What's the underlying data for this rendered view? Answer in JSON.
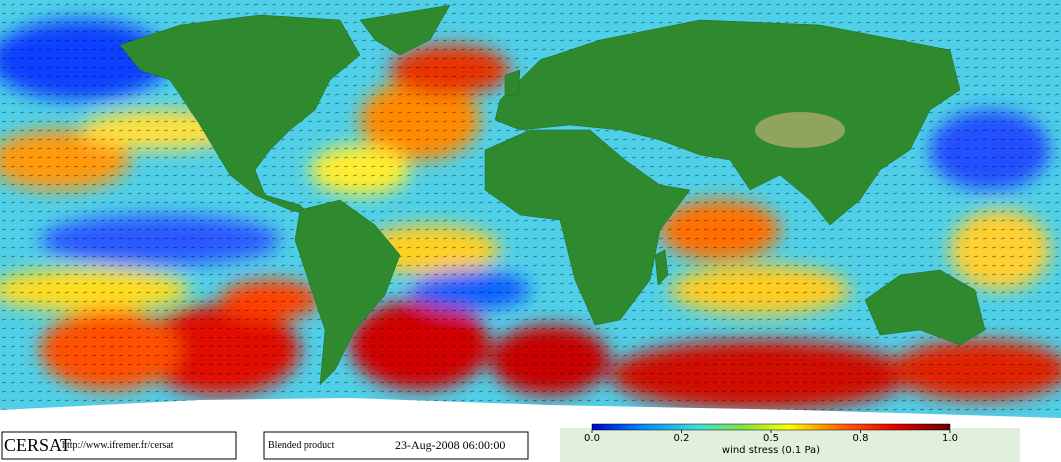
{
  "footer": {
    "logo": "CERSAT",
    "url": "http://www.ifremer.fr/cersat",
    "product": "Blended product",
    "date": "23-Aug-2008 06:00:00"
  },
  "legend": {
    "ticks": [
      {
        "value": 0,
        "label": "0.0"
      },
      0.2,
      0.5,
      0.8,
      {
        "value": 1,
        "label": "1.0"
      }
    ],
    "label": "wind stress (0.1 Pa)"
  }
}
